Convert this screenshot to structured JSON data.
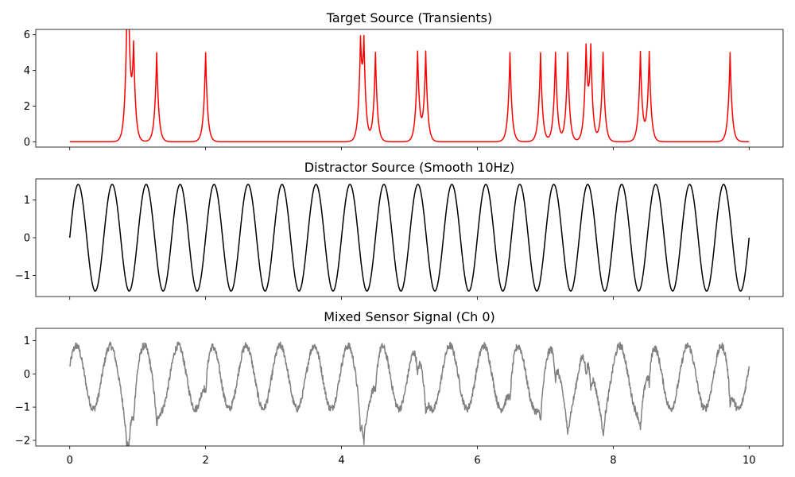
{
  "chart_data": [
    {
      "type": "line",
      "title": "Target Source (Transients)",
      "color": "#ff0000",
      "xlim": [
        -0.5,
        10.5
      ],
      "ylim": [
        -0.3,
        6.3
      ],
      "x_ticks": [
        0,
        2,
        4,
        6,
        8,
        10
      ],
      "x_tick_labels_shown": false,
      "y_ticks": [
        0,
        2,
        4,
        6
      ],
      "y_tick_labels": [
        "0",
        "2",
        "4",
        "6"
      ],
      "series": [
        {
          "description": "Sparse sharp peaks (amplitude about 5) on a zero baseline; overlapping peaks add up",
          "baseline": 0,
          "peak_amplitude": 5.0,
          "peak_width": 0.03,
          "peak_times": [
            0.84,
            0.87,
            0.94,
            1.28,
            2.0,
            4.28,
            4.33,
            4.5,
            5.12,
            5.24,
            6.48,
            6.93,
            7.15,
            7.33,
            7.6,
            7.67,
            7.85,
            8.4,
            8.53,
            9.72
          ],
          "x_range": [
            0,
            10
          ]
        }
      ]
    },
    {
      "type": "line",
      "title": "Distractor Source (Smooth 10Hz)",
      "color": "#000000",
      "xlim": [
        -0.5,
        10.5
      ],
      "ylim": [
        -1.56,
        1.56
      ],
      "x_ticks": [
        0,
        2,
        4,
        6,
        8,
        10
      ],
      "x_tick_labels_shown": false,
      "y_ticks": [
        -1,
        0,
        1
      ],
      "y_tick_labels": [
        "−1",
        "0",
        "1"
      ],
      "series": [
        {
          "description": "Sine wave, amplitude about 1.414, period about 0.5 (20 cycles over 0-10)",
          "amplitude": 1.414,
          "period": 0.5,
          "phase": 0,
          "x_range": [
            0,
            10
          ]
        }
      ]
    },
    {
      "type": "line",
      "title": "Mixed Sensor Signal (Ch 0)",
      "color": "#808080",
      "xlim": [
        -0.5,
        10.5
      ],
      "ylim": [
        -2.17,
        1.37
      ],
      "x_ticks": [
        0,
        2,
        4,
        6,
        8,
        10
      ],
      "x_tick_labels": [
        "0",
        "2",
        "4",
        "6",
        "8",
        "10"
      ],
      "y_ticks": [
        -2,
        -1,
        0,
        1
      ],
      "y_tick_labels": [
        "−2",
        "−1",
        "0",
        "1"
      ],
      "series": [
        {
          "description": "Noisy mixture: oscillation of amplitude about 0.95 (period about 0.5, centre about -0.1) minus the transient peaks (about 0.17 times their height), plus high-frequency noise",
          "amplitude": 0.95,
          "period": 0.5,
          "offset": -0.1,
          "transient_weight": -0.17,
          "noise_level": 0.05,
          "x_range": [
            0,
            10
          ]
        }
      ]
    }
  ]
}
